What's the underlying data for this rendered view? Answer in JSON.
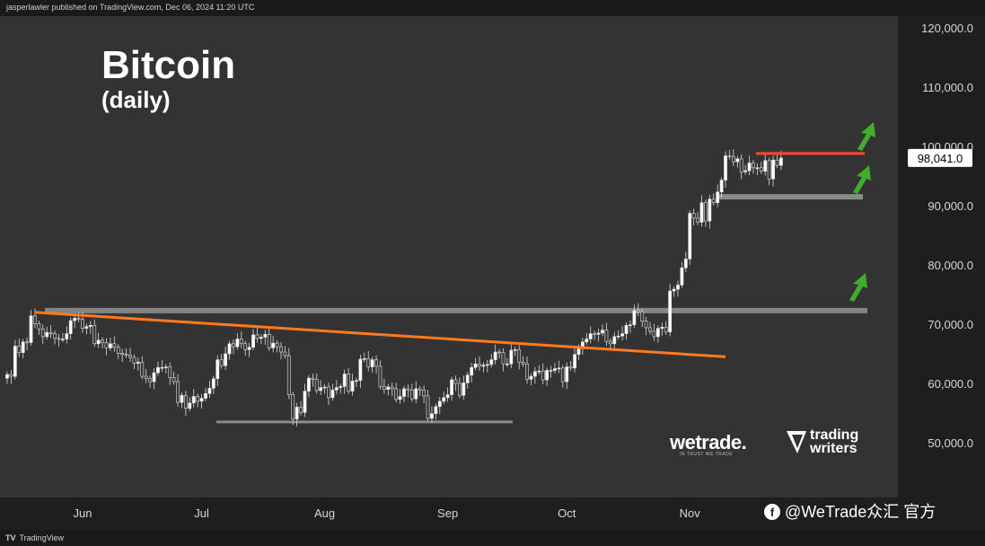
{
  "header": {
    "published_line": "jasperlawler published on TradingView.com, Dec 06, 2024 11:20 UTC"
  },
  "footer": {
    "platform_logo": "TradingView"
  },
  "title": "Bitcoin",
  "subtitle": "(daily)",
  "branding": {
    "wetrade_logo": "wetrade.",
    "wetrade_tagline": "IN TRUST WE TRADE",
    "trading_writers_logo": "trading writers",
    "watermark": "@WeTrade众汇 官方"
  },
  "colors": {
    "background": "#333333",
    "up_candle": "#ffffff",
    "down_candle": "#3a3a3a",
    "resistance_trendline": "#ff7a1a",
    "support_zone": "#8a8a8a",
    "arrows": "#3fae2a",
    "top_resistance": "#ff4a2a",
    "price_label_bg": "#ffffff"
  },
  "chart_data": {
    "type": "candlestick",
    "title": "Bitcoin",
    "subtitle": "(daily)",
    "x_axis": {
      "tick_labels": [
        "Jun",
        "Jul",
        "Aug",
        "Sep",
        "Oct",
        "Nov"
      ]
    },
    "y_axis": {
      "tick_labels": [
        "50,000.0",
        "60,000.0",
        "70,000.0",
        "80,000.0",
        "90,000.0",
        "100,000.0",
        "110,000.0",
        "120,000.0"
      ],
      "ylim": [
        46000,
        124000
      ],
      "position": "right"
    },
    "last_price": 98041.0,
    "last_price_label": "98,041.0",
    "grid": false,
    "start_date": "2024-05-13",
    "end_date": "2024-12-06",
    "closes": [
      61500,
      61200,
      66300,
      65200,
      67000,
      66900,
      71400,
      70100,
      69200,
      67900,
      68600,
      68400,
      67600,
      67500,
      67500,
      68400,
      70600,
      71000,
      70800,
      69300,
      69600,
      69800,
      66700,
      67300,
      66900,
      66000,
      66700,
      66100,
      65100,
      64900,
      64800,
      64400,
      63400,
      63600,
      61200,
      60800,
      60300,
      61800,
      62700,
      62700,
      62800,
      61000,
      60300,
      56800,
      58000,
      55800,
      56700,
      57800,
      57000,
      57500,
      58300,
      59200,
      60800,
      64000,
      63000,
      65000,
      66700,
      66200,
      67500,
      66700,
      65700,
      66100,
      68200,
      67600,
      67800,
      68300,
      66000,
      66800,
      66200,
      65300,
      64700,
      58100,
      54000,
      56000,
      55100,
      58700,
      60900,
      60700,
      58800,
      59300,
      59400,
      57600,
      58900,
      59300,
      59500,
      61600,
      58700,
      60400,
      60500,
      64100,
      64200,
      62800,
      64000,
      62900,
      59500,
      59000,
      59400,
      59100,
      57300,
      57800,
      59100,
      58900,
      57400,
      59100,
      58900,
      57900,
      54100,
      54900,
      56100,
      57000,
      57600,
      58100,
      60600,
      60000,
      58000,
      60100,
      61400,
      62700,
      63300,
      62900,
      63100,
      63200,
      64000,
      65300,
      65200,
      63300,
      63300,
      65600,
      65700,
      63600,
      63300,
      60700,
      61200,
      62000,
      62100,
      60600,
      62200,
      62200,
      62500,
      62600,
      60300,
      62800,
      62600,
      64900,
      66100,
      67000,
      67500,
      68400,
      68300,
      68500,
      69000,
      67100,
      66700,
      67900,
      68000,
      68400,
      69800,
      69900,
      72300,
      72100,
      70500,
      69400,
      68800,
      67900,
      69300,
      69500,
      68700,
      75600,
      75900,
      76600,
      79500,
      81000,
      88700,
      87900,
      87200,
      90500,
      87400,
      91100,
      90500,
      92300,
      94300,
      98400,
      98300,
      97400,
      97900,
      95700,
      95900,
      97200,
      96400,
      96400,
      95800,
      97600,
      94500,
      97700,
      96800,
      98041
    ],
    "annotations": {
      "descending_trendline": {
        "from": {
          "date": "2024-05-20",
          "price": 72000
        },
        "to": {
          "date": "2024-11-10",
          "price": 64500
        }
      },
      "horizontal_lines": [
        72300,
        53500,
        91500,
        98800
      ],
      "arrows": "three green up arrows (near 80,000, 95,000 and 102,000)"
    }
  }
}
